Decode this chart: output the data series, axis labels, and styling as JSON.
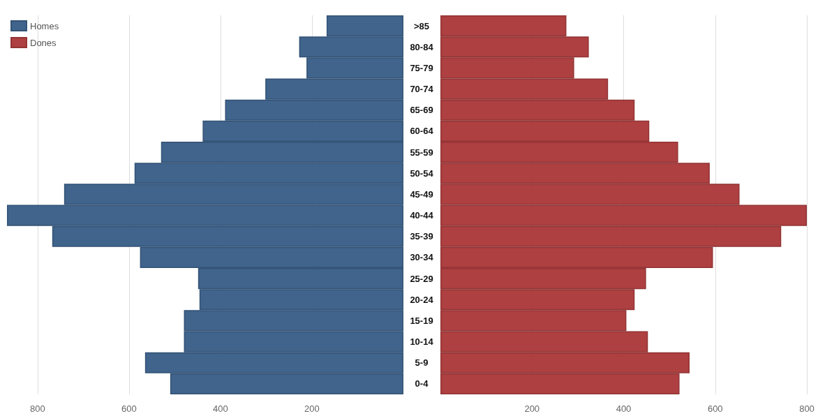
{
  "chart_data": [
    {
      "type": "bar",
      "orientation": "horizontal",
      "categories": [
        ">85",
        "80-84",
        "75-79",
        "70-74",
        "65-69",
        "60-64",
        "55-59",
        "50-54",
        "45-49",
        "40-44",
        "35-39",
        "30-34",
        "25-29",
        "20-24",
        "15-19",
        "10-14",
        "5-9",
        "0-4"
      ],
      "series": [
        {
          "name": "Homes",
          "color": "#3a5f88",
          "values": [
            168,
            228,
            212,
            302,
            390,
            439,
            530,
            588,
            742,
            867,
            768,
            576,
            449,
            446,
            480,
            480,
            565,
            510
          ]
        }
      ],
      "xlim": [
        870,
        0
      ],
      "xticks": [
        800,
        600,
        400,
        200
      ],
      "grid": "x",
      "legend": "top left"
    },
    {
      "type": "bar",
      "orientation": "horizontal",
      "categories": [
        null,
        null,
        null,
        null,
        null,
        null,
        null,
        null,
        null,
        null,
        null,
        null,
        null,
        null,
        null,
        null,
        null,
        null
      ],
      "series": [
        {
          "name": "Dones",
          "color": "#ab3a3b",
          "values": [
            275,
            324,
            292,
            366,
            424,
            456,
            519,
            588,
            653,
            800,
            744,
            595,
            449,
            424,
            406,
            453,
            544,
            522
          ]
        }
      ],
      "xlim": [
        0,
        800
      ],
      "xticks": [
        200,
        400,
        600,
        800
      ],
      "grid": "x",
      "legend": "top left",
      "tick_labels": "x"
    }
  ]
}
